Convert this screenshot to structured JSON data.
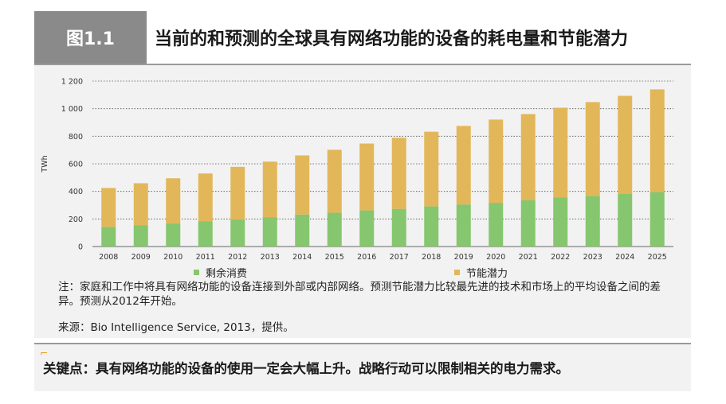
{
  "header": {
    "tag": "图1.1",
    "title": "当前的和预测的全球具有网络功能的设备的耗电量和节能潜力"
  },
  "chart_data": {
    "type": "bar",
    "stacked": true,
    "categories": [
      "2008",
      "2009",
      "2010",
      "2011",
      "2012",
      "2013",
      "2014",
      "2015",
      "2016",
      "2017",
      "2018",
      "2019",
      "2020",
      "2021",
      "2022",
      "2023",
      "2024",
      "2025"
    ],
    "series": [
      {
        "name": "剩余消费",
        "color": "#86c66e",
        "values": [
          143,
          155,
          168,
          184,
          196,
          213,
          232,
          245,
          262,
          273,
          291,
          305,
          317,
          337,
          355,
          366,
          385,
          395
        ]
      },
      {
        "name": "节能潜力",
        "color": "#e2b75a",
        "values": [
          282,
          304,
          327,
          346,
          382,
          403,
          429,
          457,
          485,
          516,
          542,
          570,
          604,
          624,
          652,
          682,
          708,
          745
        ]
      }
    ],
    "ylabel": "TWh",
    "ylim": [
      0,
      1200
    ],
    "yticks": [
      0,
      200,
      400,
      600,
      800,
      1000,
      1200
    ],
    "ytick_labels": [
      "0",
      "200",
      "400",
      "600",
      "800",
      "1 000",
      "1 200"
    ],
    "grid": true,
    "legend_position": "bottom"
  },
  "legend": {
    "item1": "剩余消费",
    "item2": "节能潜力"
  },
  "note": "注：家庭和工作中将具有网络功能的设备连接到外部或内部网络。预测节能潜力比较最先进的技术和市场上的平均设备之间的差异。预测从2012年开始。",
  "source": "来源：Bio Intelligence Service, 2013，提供。",
  "takeaway": "关键点：具有网络功能的设备的使用一定会大幅上升。战略行动可以限制相关的电力需求。"
}
